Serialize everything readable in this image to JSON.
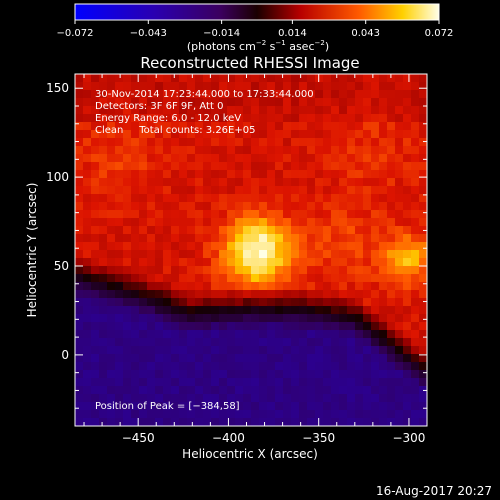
{
  "chart_data": {
    "type": "heatmap",
    "title": "Reconstructed RHESSI Image",
    "xlabel": "Heliocentric X (arcsec)",
    "ylabel": "Heliocentric Y (arcsec)",
    "xlim": [
      -485,
      -290
    ],
    "ylim": [
      -40,
      158
    ],
    "x_ticks": [
      -450,
      -400,
      -350,
      -300
    ],
    "x_tick_labels": [
      "−450",
      "−400",
      "−350",
      "−300"
    ],
    "y_ticks": [
      0,
      50,
      100,
      150
    ],
    "y_tick_labels": [
      "0",
      "50",
      "100",
      "150"
    ],
    "colorbar": {
      "min": -0.072,
      "max": 0.072,
      "ticks": [
        -0.072,
        -0.043,
        -0.014,
        0.014,
        0.043,
        0.072
      ],
      "tick_labels": [
        "−0.072",
        "−0.043",
        "−0.014",
        "0.014",
        "0.043",
        "0.072"
      ],
      "unit_parts": {
        "a": "(photons cm",
        "a_sup": "−2",
        "b": " s",
        "b_sup": "−1",
        "c": " asec",
        "c_sup": "−2",
        "d": ")"
      }
    },
    "annotations": [
      "30-Nov-2014 17:23:44.000 to 17:33:44.000",
      "Detectors: 3F 6F 9F, Att 0",
      "Energy Range: 6.0 - 12.0 keV",
      "Clean     Total counts: 3.26E+05"
    ],
    "peak_label": "Position of Peak = [−384,58]",
    "peak": {
      "x": -384,
      "y": 58
    },
    "sources": [
      {
        "x": -384,
        "y": 58,
        "peak": 0.072,
        "width": 14
      },
      {
        "x": -300,
        "y": 54,
        "peak": 0.055,
        "width": 10
      },
      {
        "x": -335,
        "y": 62,
        "peak": 0.038,
        "width": 16
      },
      {
        "x": -460,
        "y": 112,
        "peak": 0.036,
        "width": 18
      },
      {
        "x": -320,
        "y": 115,
        "peak": 0.034,
        "width": 20
      }
    ],
    "background_level": 0.028,
    "dark_region_level": -0.03,
    "colors": {
      "background": "#000000",
      "axes": "#ffffff"
    }
  },
  "footer_timestamp": "16-Aug-2017 20:27"
}
